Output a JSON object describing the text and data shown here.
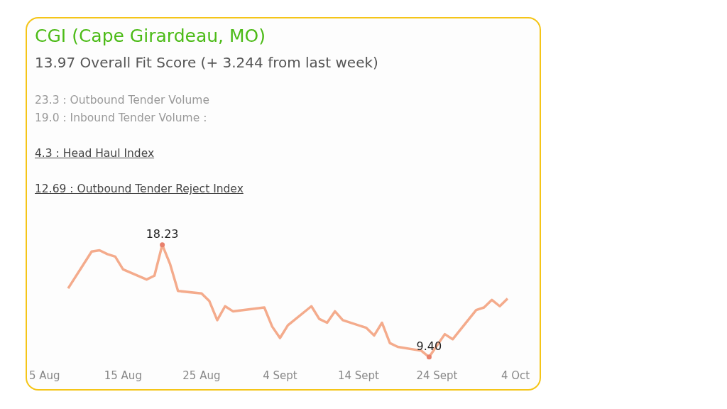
{
  "chart_data": {
    "type": "line",
    "title": "CGI (Cape Girardeau, MO)",
    "subtitle": "13.97 Overall Fit Score (+ 3.244 from last week)",
    "annotations": [
      "23.3 : Outbound Tender Volume",
      "19.0 : Inbound Tender Volume :",
      "4.3 : Head Haul Index",
      "12.69 : Outbound Tender Reject Index"
    ],
    "x": [
      "--08-08",
      "--08-11",
      "--08-12",
      "--08-13",
      "--08-14",
      "--08-15",
      "--08-18",
      "--08-19",
      "--08-20",
      "--08-21",
      "--08-22",
      "--08-25",
      "--08-26",
      "--08-27",
      "--08-28",
      "--08-29",
      "--09-02",
      "--09-03",
      "--09-04",
      "--09-05",
      "--09-08",
      "--09-09",
      "--09-10",
      "--09-11",
      "--09-12",
      "--09-15",
      "--09-16",
      "--09-17",
      "--09-18",
      "--09-19",
      "--09-22",
      "--09-23",
      "--09-25",
      "--09-26",
      "--09-29",
      "--09-30",
      "--10-01",
      "--10-02",
      "--10-03"
    ],
    "series": [
      {
        "color": "#f4ab8c",
        "values": [
          14.8,
          17.7,
          17.8,
          17.5,
          17.3,
          16.3,
          15.5,
          15.8,
          18.23,
          16.7,
          14.6,
          14.4,
          13.8,
          12.3,
          13.4,
          13.0,
          13.3,
          11.8,
          10.9,
          11.9,
          13.4,
          12.4,
          12.1,
          13.0,
          12.3,
          11.7,
          11.1,
          12.1,
          10.5,
          10.2,
          9.9,
          9.4,
          11.2,
          10.8,
          13.1,
          13.3,
          13.9,
          13.4,
          14.0
        ],
        "value_labels": [
          null,
          null,
          null,
          null,
          null,
          null,
          null,
          null,
          "18.23",
          null,
          null,
          null,
          null,
          null,
          null,
          null,
          null,
          null,
          null,
          null,
          null,
          null,
          null,
          null,
          null,
          null,
          null,
          null,
          null,
          null,
          null,
          "9.40",
          null,
          null,
          null,
          null,
          null,
          null,
          null
        ]
      }
    ],
    "xlim": [
      "--08-05",
      "--10-04"
    ],
    "xticks": [
      {
        "value": "--08-05",
        "label": "5 Aug"
      },
      {
        "value": "--08-15",
        "label": "15 Aug"
      },
      {
        "value": "--08-25",
        "label": "25 Aug"
      },
      {
        "value": "--09-04",
        "label": "4 Sept"
      },
      {
        "value": "--09-14",
        "label": "14 Sept"
      },
      {
        "value": "--09-24",
        "label": "24 Sept"
      },
      {
        "value": "--10-04",
        "label": "4 Oct"
      }
    ],
    "grid": false,
    "legend": false
  }
}
